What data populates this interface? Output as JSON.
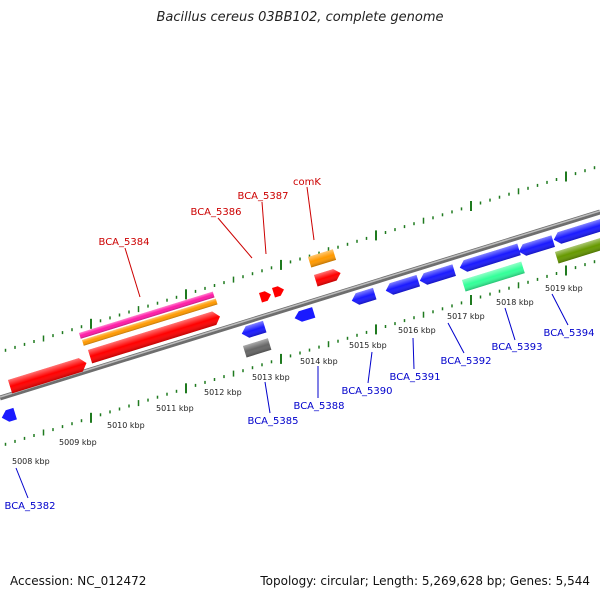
{
  "title": "Bacillus cereus 03BB102, complete genome",
  "footer": {
    "accession": "Accession: NC_012472",
    "summary": "Topology: circular; Length: 5,269,628 bp; Genes: 5,544"
  },
  "colors": {
    "backbone": "#8a8a8a",
    "tick": "#1f7a1f",
    "forward_label": "#cc0000",
    "reverse_label": "#0000cc",
    "kbp_label": "#222222"
  },
  "scale_labels": [
    "5008 kbp",
    "5009 kbp",
    "5010 kbp",
    "5011 kbp",
    "5012 kbp",
    "5013 kbp",
    "5014 kbp",
    "5015 kbp",
    "5016 kbp",
    "5017 kbp",
    "5018 kbp",
    "5019 kbp"
  ],
  "gene_labels": {
    "forward": [
      "BCA_5384",
      "BCA_5386",
      "BCA_5387",
      "comK"
    ],
    "reverse": [
      "BCA_5382",
      "BCA_5385",
      "BCA_5388",
      "BCA_5390",
      "BCA_5391",
      "BCA_5392",
      "BCA_5393",
      "BCA_5394"
    ]
  }
}
